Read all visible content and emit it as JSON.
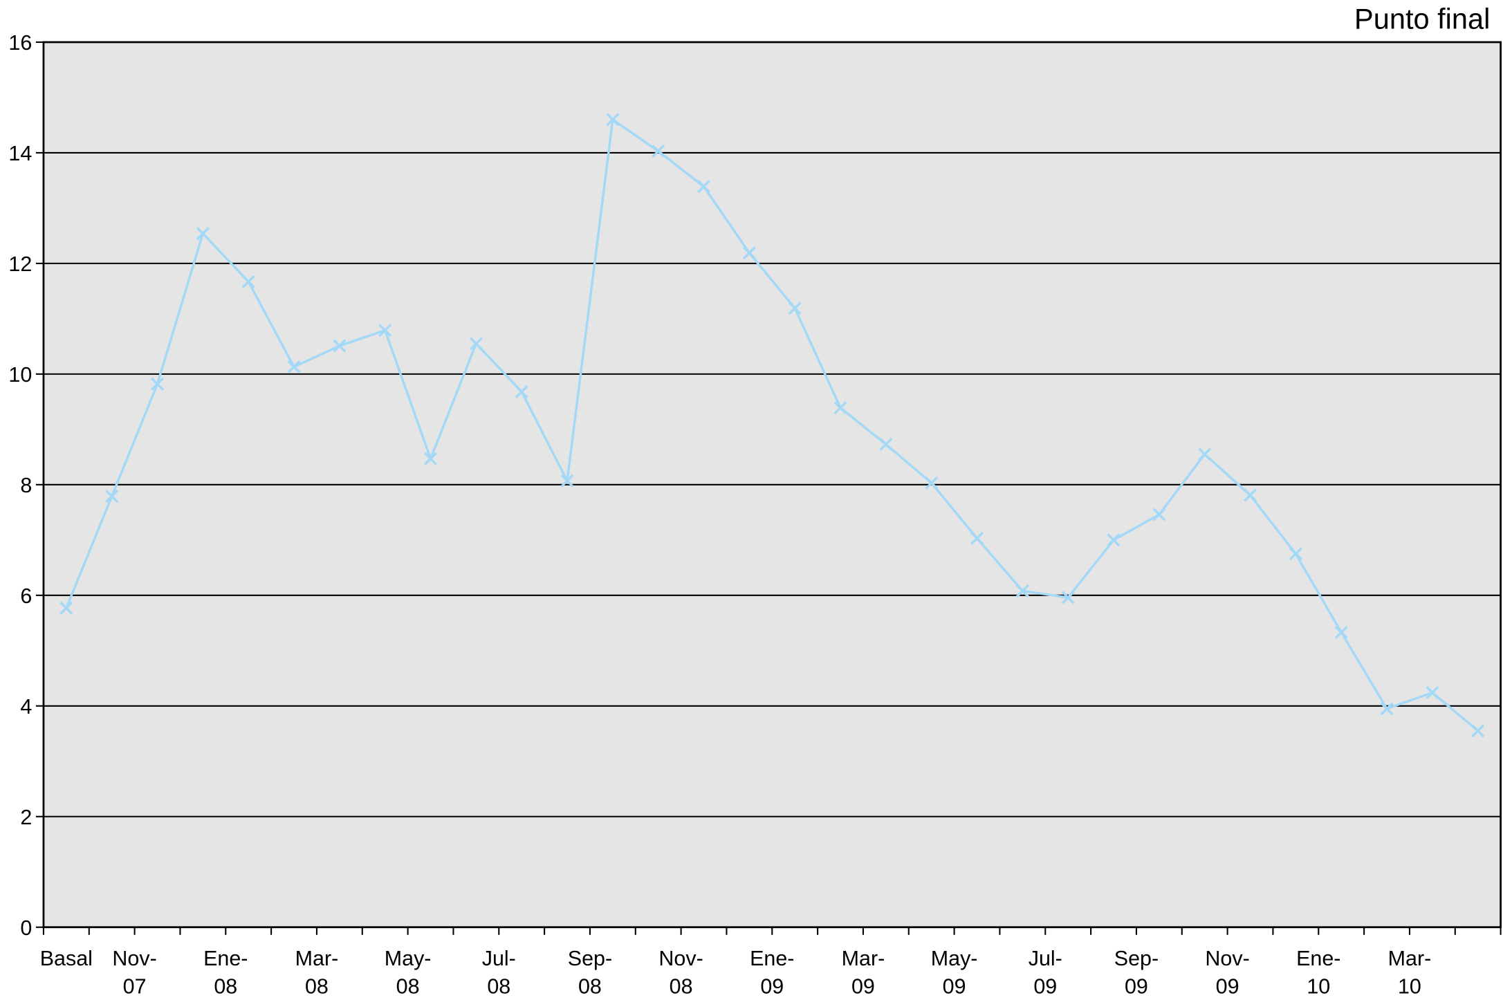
{
  "chart_data": {
    "type": "line",
    "title": "Punto final",
    "categories": [
      "Basal",
      null,
      "Nov-07",
      null,
      "Ene-08",
      null,
      "Mar-08",
      null,
      "May-08",
      null,
      "Jul-08",
      null,
      "Sep-08",
      null,
      "Nov-08",
      null,
      "Ene-09",
      null,
      "Mar-09",
      null,
      "May-09",
      null,
      "Jul-09",
      null,
      "Sep-09",
      null,
      "Nov-09",
      null,
      "Ene-10",
      null,
      "Mar-10",
      null
    ],
    "series": [
      {
        "name": "Punto final",
        "color": "#a3d9f7",
        "values": [
          5.77,
          7.79,
          9.82,
          12.54,
          11.67,
          10.13,
          10.51,
          10.79,
          8.47,
          10.55,
          9.68,
          8.07,
          14.6,
          14.03,
          13.39,
          12.19,
          11.19,
          9.39,
          8.73,
          8.03,
          7.03,
          6.08,
          5.96,
          7.0,
          7.46,
          8.55,
          7.81,
          6.75,
          5.33,
          3.95,
          4.24,
          3.55
        ]
      }
    ],
    "ylim": [
      0,
      16
    ],
    "yticks": [
      0,
      2,
      4,
      6,
      8,
      10,
      12,
      14,
      16
    ],
    "grid": true
  }
}
